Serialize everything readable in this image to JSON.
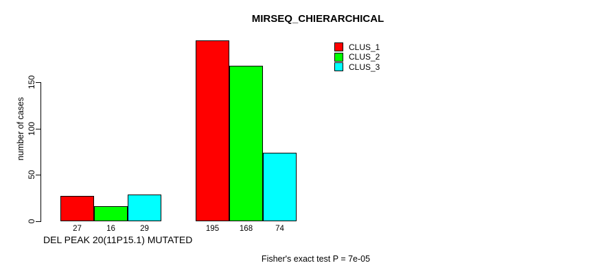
{
  "chart_data": {
    "type": "bar",
    "title": "MIRSEQ_CHIERARCHICAL",
    "ylabel": "number of cases",
    "xlabel": "DEL PEAK 20(11P15.1) MUTATED",
    "footnote": "Fisher's exact test P = 7e-05",
    "yticks": [
      0,
      50,
      100,
      150
    ],
    "ylim": [
      0,
      200
    ],
    "grid": false,
    "legend_position": "top-right",
    "bar_value_labels_shown": true,
    "axis_color": "#000000",
    "background_color": "#ffffff",
    "series": [
      {
        "name": "CLUS_1",
        "color": "#ff0000",
        "values": [
          27,
          195
        ]
      },
      {
        "name": "CLUS_2",
        "color": "#00ff00",
        "values": [
          16,
          168
        ]
      },
      {
        "name": "CLUS_3",
        "color": "#00ffff",
        "values": [
          29,
          74
        ]
      }
    ]
  }
}
